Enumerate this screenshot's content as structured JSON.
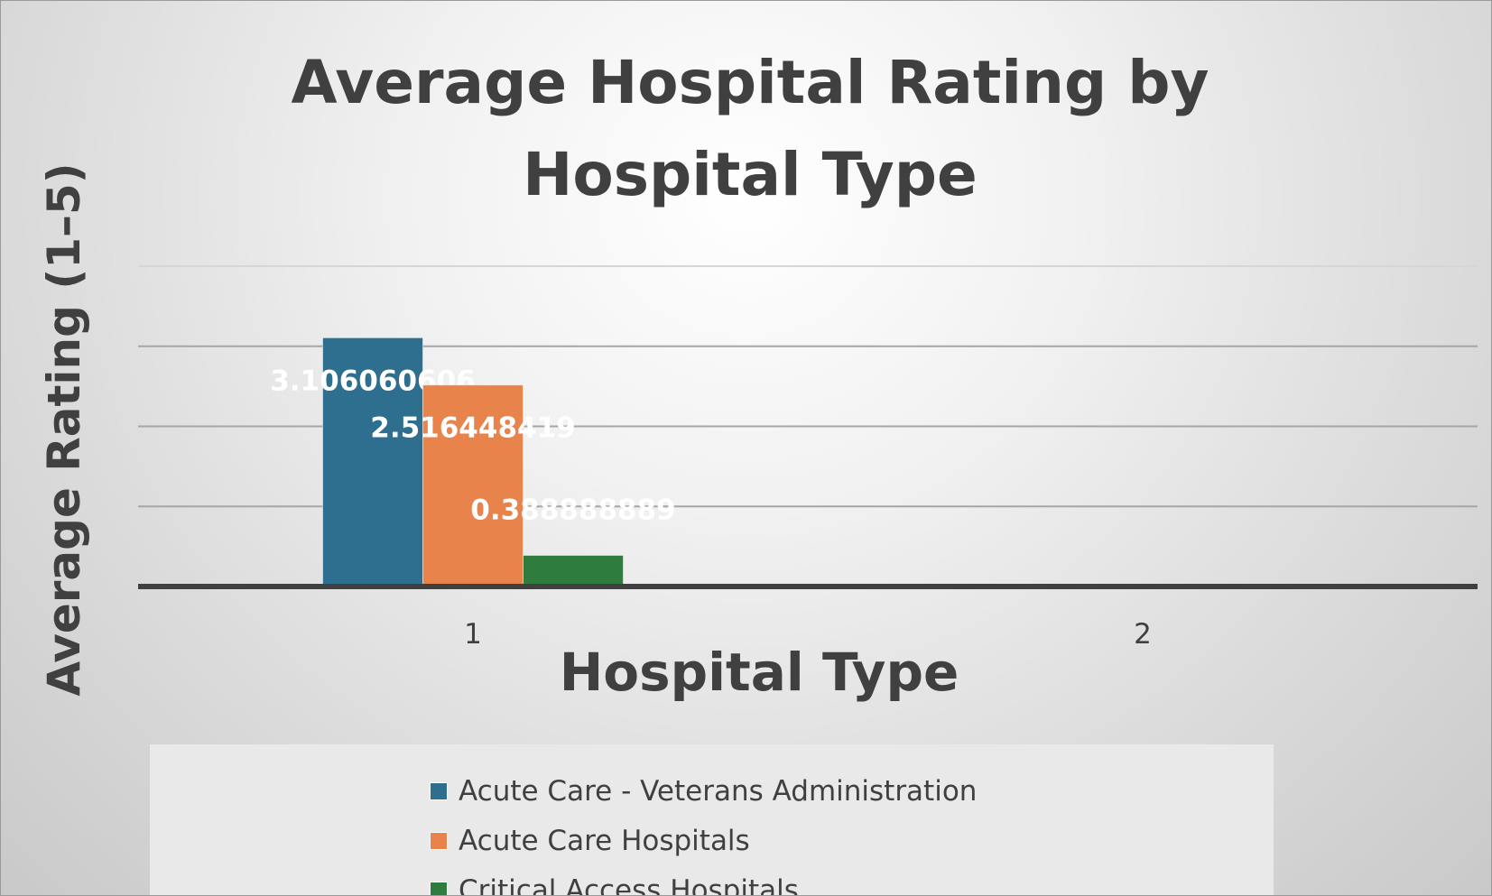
{
  "chart_data": {
    "type": "bar",
    "title": "Average Hospital Rating by Hospital Type",
    "xlabel": "Hospital Type",
    "ylabel": "Average Rating (1–5)",
    "categories": [
      "1",
      "2"
    ],
    "series": [
      {
        "name": "Acute Care - Veterans Administration",
        "color": "#2e6e8e",
        "values": [
          3.106060606,
          0
        ],
        "labels": [
          "3.106060606",
          "0"
        ]
      },
      {
        "name": "Acute Care Hospitals",
        "color": "#e8834b",
        "values": [
          2.516448419,
          0
        ],
        "labels": [
          "2.516448419",
          "0"
        ]
      },
      {
        "name": "Critical Access Hospitals",
        "color": "#2f7d3e",
        "values": [
          0.388888889,
          0
        ],
        "labels": [
          "0.388888889",
          "0"
        ]
      }
    ],
    "ylim": [
      0,
      4
    ],
    "grid": true,
    "y_tick_labels_visible": false,
    "legend_position": "bottom"
  }
}
